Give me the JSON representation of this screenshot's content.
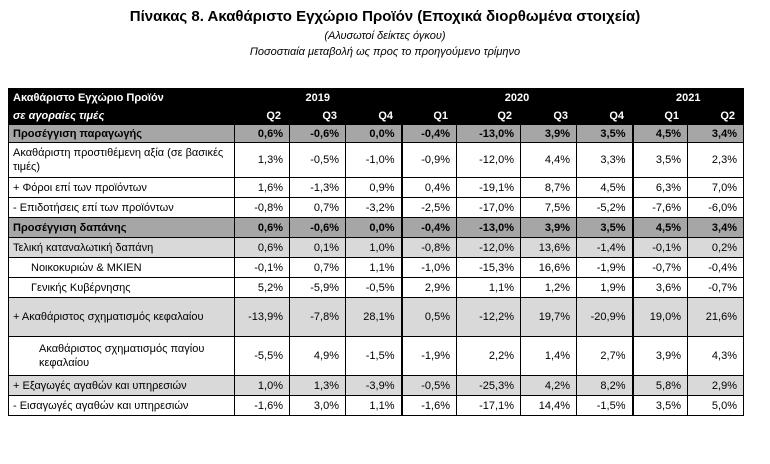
{
  "title": "Πίνακας 8. Ακαθάριστο Εγχώριο Προϊόν (Εποχικά διορθωμένα στοιχεία)",
  "subtitle1": "(Αλυσωτοί δείκτες όγκου)",
  "subtitle2": "Ποσοστιαία μεταβολή ως προς το προηγούμενο τρίμηνο",
  "header": {
    "label_row1": "Ακαθάριστο Εγχώριο Προϊόν",
    "label_row2": "σε αγοραίες τιμές",
    "years": [
      "2019",
      "2020",
      "2021"
    ],
    "quarters": [
      "Q2",
      "Q3",
      "Q4",
      "Q1",
      "Q2",
      "Q3",
      "Q4",
      "Q1",
      "Q2"
    ]
  },
  "rows": [
    {
      "label": "Προσέγγιση παραγωγής",
      "values": [
        "0,6%",
        "-0,6%",
        "0,0%",
        "-0,4%",
        "-13,0%",
        "3,9%",
        "3,5%",
        "4,5%",
        "3,4%"
      ]
    },
    {
      "label": "Ακαθάριστη προστιθέμενη αξία (σε βασικές τιμές)",
      "values": [
        "1,3%",
        "-0,5%",
        "-1,0%",
        "-0,9%",
        "-12,0%",
        "4,4%",
        "3,3%",
        "3,5%",
        "2,3%"
      ]
    },
    {
      "label": "+  Φόροι επί των προϊόντων",
      "values": [
        "1,6%",
        "-1,3%",
        "0,9%",
        "0,4%",
        "-19,1%",
        "8,7%",
        "4,5%",
        "6,3%",
        "7,0%"
      ]
    },
    {
      "label": "-  Επιδοτήσεις επί των προϊόντων",
      "values": [
        "-0,8%",
        "0,7%",
        "-3,2%",
        "-2,5%",
        "-17,0%",
        "7,5%",
        "-5,2%",
        "-7,6%",
        "-6,0%"
      ]
    },
    {
      "label": "Προσέγγιση δαπάνης",
      "values": [
        "0,6%",
        "-0,6%",
        "0,0%",
        "-0,4%",
        "-13,0%",
        "3,9%",
        "3,5%",
        "4,5%",
        "3,4%"
      ]
    },
    {
      "label": "Τελική καταναλωτική δαπάνη",
      "values": [
        "0,6%",
        "0,1%",
        "1,0%",
        "-0,8%",
        "-12,0%",
        "13,6%",
        "-1,4%",
        "-0,1%",
        "0,2%"
      ]
    },
    {
      "label": "Νοικοκυριών & ΜΚΙΕΝ",
      "values": [
        "-0,1%",
        "0,7%",
        "1,1%",
        "-1,0%",
        "-15,3%",
        "16,6%",
        "-1,9%",
        "-0,7%",
        "-0,4%"
      ]
    },
    {
      "label": "Γενικής Κυβέρνησης",
      "values": [
        "5,2%",
        "-5,9%",
        "-0,5%",
        "2,9%",
        "1,1%",
        "1,2%",
        "1,9%",
        "3,6%",
        "-0,7%"
      ]
    },
    {
      "label": "+ Ακαθάριστος σχηματισμός κεφαλαίου",
      "values": [
        "-13,9%",
        "-7,8%",
        "28,1%",
        "0,5%",
        "-12,2%",
        "19,7%",
        "-20,9%",
        "19,0%",
        "21,6%"
      ]
    },
    {
      "label": "Ακαθάριστος σχηματισμός παγίου κεφαλαίου",
      "values": [
        "-5,5%",
        "4,9%",
        "-1,5%",
        "-1,9%",
        "2,2%",
        "1,4%",
        "2,7%",
        "3,9%",
        "4,3%"
      ]
    },
    {
      "label": "+ Εξαγωγές αγαθών και υπηρεσιών",
      "values": [
        "1,0%",
        "1,3%",
        "-3,9%",
        "-0,5%",
        "-25,3%",
        "4,2%",
        "8,2%",
        "5,8%",
        "2,9%"
      ]
    },
    {
      "label": "-  Εισαγωγές αγαθών και υπηρεσιών",
      "values": [
        "-1,6%",
        "3,0%",
        "1,1%",
        "-1,6%",
        "-17,1%",
        "14,4%",
        "-1,5%",
        "3,5%",
        "5,0%"
      ]
    }
  ]
}
